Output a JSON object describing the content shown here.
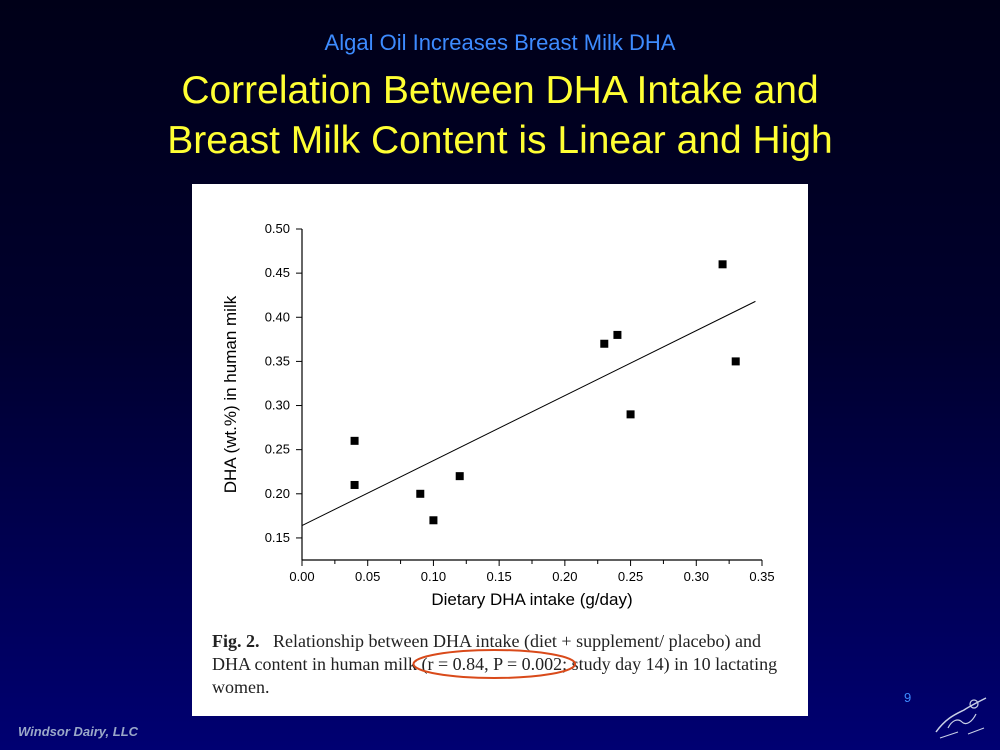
{
  "slide": {
    "subtitle": "Algal Oil Increases Breast Milk DHA",
    "title_line1": "Correlation Between DHA Intake and",
    "title_line2": "Breast Milk Content is Linear and High",
    "slide_number": "9",
    "footer": "Windsor Dairy, LLC"
  },
  "caption": {
    "label": "Fig. 2.",
    "text_pre": "Relationship between DHA intake (diet + supplement/ placebo) and DHA content in human milk ",
    "text_circled": "(r = 0.84, P = 0.002;",
    "text_post": " study day 14) in 10 lactating women.",
    "highlight_color": "#d94a1a"
  },
  "chart_data": {
    "type": "scatter",
    "xlabel": "Dietary DHA intake (g/day)",
    "ylabel": "DHA (wt.%) in human milk",
    "xlim": [
      0,
      0.35
    ],
    "ylim": [
      0.125,
      0.5
    ],
    "x_ticks": [
      "0.00",
      "0.05",
      "0.10",
      "0.15",
      "0.20",
      "0.25",
      "0.30",
      "0.35"
    ],
    "y_ticks": [
      "0.15",
      "0.20",
      "0.25",
      "0.30",
      "0.35",
      "0.40",
      "0.45",
      "0.50"
    ],
    "points": [
      {
        "x": 0.04,
        "y": 0.26
      },
      {
        "x": 0.04,
        "y": 0.21
      },
      {
        "x": 0.09,
        "y": 0.2
      },
      {
        "x": 0.1,
        "y": 0.17
      },
      {
        "x": 0.12,
        "y": 0.22
      },
      {
        "x": 0.23,
        "y": 0.37
      },
      {
        "x": 0.24,
        "y": 0.38
      },
      {
        "x": 0.25,
        "y": 0.29
      },
      {
        "x": 0.32,
        "y": 0.46
      },
      {
        "x": 0.33,
        "y": 0.35
      }
    ],
    "trendline": {
      "x": [
        0.0,
        0.345
      ],
      "y": [
        0.164,
        0.418
      ]
    }
  }
}
